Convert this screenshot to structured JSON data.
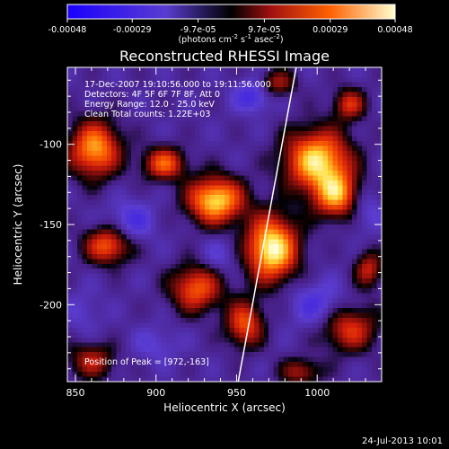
{
  "chart_data": {
    "type": "heatmap",
    "title": "Reconstructed RHESSI Image",
    "xlabel": "Heliocentric X (arcsec)",
    "ylabel": "Heliocentric Y (arcsec)",
    "xlim": [
      845,
      1040
    ],
    "ylim": [
      -248,
      -52
    ],
    "xticks": [
      850,
      900,
      950,
      1000
    ],
    "yticks": [
      -100,
      -150,
      -200
    ],
    "colorbar": {
      "min": -0.00048,
      "max": 0.00048,
      "ticks": [
        "-0.00048",
        "-0.00029",
        "-9.7e-05",
        "9.7e-05",
        "0.00029",
        "0.00048"
      ],
      "tick_values": [
        -0.00048,
        -0.00029,
        -9.7e-05,
        9.7e-05,
        0.00029,
        0.00048
      ]
    },
    "colorbar_unit": {
      "base": "(photons cm",
      "e1": "-2",
      "mid1": " s",
      "e2": "-1",
      "mid2": " asec",
      "e3": "-2",
      "end": ")"
    },
    "annotations": [
      "17-Dec-2007 19:10:56.000 to 19:11:56.000",
      "Detectors: 4F 5F 6F 7F 8F, Att 0",
      "Energy Range: 12.0 - 25.0 keV",
      "Clean     Total counts: 1.22E+03"
    ],
    "peak_label": "Position of Peak = [972,-163]",
    "peak": [
      972,
      -163
    ],
    "sources": [
      {
        "x": 972,
        "y": -165,
        "value": 0.00048,
        "sx": 11,
        "sy": 14
      },
      {
        "x": 1000,
        "y": -110,
        "value": 0.00042,
        "sx": 14,
        "sy": 13
      },
      {
        "x": 1012,
        "y": -132,
        "value": 0.00032,
        "sx": 10,
        "sy": 10
      },
      {
        "x": 937,
        "y": -135,
        "value": 0.00042,
        "sx": 12,
        "sy": 10
      },
      {
        "x": 905,
        "y": -112,
        "value": 0.00026,
        "sx": 9,
        "sy": 7
      },
      {
        "x": 862,
        "y": -103,
        "value": 0.00035,
        "sx": 11,
        "sy": 12
      },
      {
        "x": 870,
        "y": -163,
        "value": 0.00026,
        "sx": 10,
        "sy": 8
      },
      {
        "x": 925,
        "y": -190,
        "value": 0.00026,
        "sx": 11,
        "sy": 10
      },
      {
        "x": 955,
        "y": -212,
        "value": 0.00024,
        "sx": 8,
        "sy": 10
      },
      {
        "x": 1020,
        "y": -215,
        "value": 0.0002,
        "sx": 12,
        "sy": 10
      },
      {
        "x": 1020,
        "y": -75,
        "value": 0.00018,
        "sx": 7,
        "sy": 7
      },
      {
        "x": 1032,
        "y": -178,
        "value": 0.00016,
        "sx": 6,
        "sy": 8
      },
      {
        "x": 860,
        "y": -235,
        "value": 0.00014,
        "sx": 10,
        "sy": 8
      },
      {
        "x": 975,
        "y": -62,
        "value": 0.00012,
        "sx": 8,
        "sy": 6
      },
      {
        "x": 990,
        "y": -242,
        "value": 0.00012,
        "sx": 9,
        "sy": 6
      },
      {
        "x": 885,
        "y": -148,
        "value": -0.00026,
        "sx": 10,
        "sy": 9
      },
      {
        "x": 960,
        "y": -70,
        "value": -0.0003,
        "sx": 8,
        "sy": 7
      },
      {
        "x": 1000,
        "y": -200,
        "value": -0.00026,
        "sx": 12,
        "sy": 10
      },
      {
        "x": 940,
        "y": -170,
        "value": -0.0002,
        "sx": 8,
        "sy": 8
      },
      {
        "x": 900,
        "y": -225,
        "value": -0.0002,
        "sx": 10,
        "sy": 8
      },
      {
        "x": 1030,
        "y": -140,
        "value": -0.00022,
        "sx": 8,
        "sy": 10
      },
      {
        "x": 855,
        "y": -205,
        "value": -0.00018,
        "sx": 8,
        "sy": 10
      }
    ],
    "background": -0.0001,
    "limb_line": [
      [
        951,
        -248
      ],
      [
        987,
        -52
      ]
    ],
    "footer_date": "24-Jul-2013 10:01"
  }
}
